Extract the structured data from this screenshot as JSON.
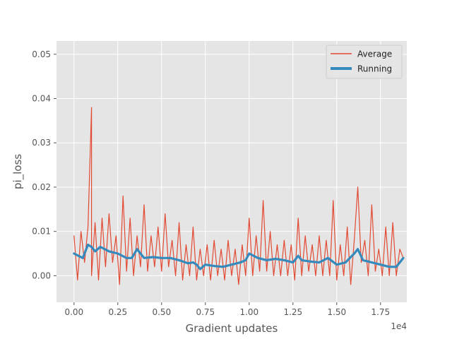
{
  "chart_data": {
    "type": "line",
    "xlabel": "Gradient updates",
    "ylabel": "pi_loss",
    "x_offset_label": "1e4",
    "xlim": [
      -0.1,
      1.9
    ],
    "ylim": [
      -0.006,
      0.053
    ],
    "x_ticks": [
      0.0,
      0.25,
      0.5,
      0.75,
      1.0,
      1.25,
      1.5,
      1.75
    ],
    "x_tick_labels": [
      "0.00",
      "0.25",
      "0.50",
      "0.75",
      "1.00",
      "1.25",
      "1.50",
      "1.75"
    ],
    "y_ticks": [
      0.0,
      0.01,
      0.02,
      0.03,
      0.04,
      0.05
    ],
    "y_tick_labels": [
      "0.00",
      "0.01",
      "0.02",
      "0.03",
      "0.04",
      "0.05"
    ],
    "grid": true,
    "legend": "top-right",
    "series": [
      {
        "name": "Average",
        "color": "#E24A33",
        "values_x": [
          0.0,
          0.02,
          0.04,
          0.06,
          0.08,
          0.1,
          0.1,
          0.12,
          0.14,
          0.16,
          0.18,
          0.2,
          0.22,
          0.24,
          0.26,
          0.28,
          0.3,
          0.32,
          0.34,
          0.36,
          0.38,
          0.4,
          0.42,
          0.44,
          0.46,
          0.48,
          0.5,
          0.52,
          0.54,
          0.56,
          0.58,
          0.6,
          0.62,
          0.64,
          0.66,
          0.68,
          0.7,
          0.72,
          0.74,
          0.76,
          0.78,
          0.8,
          0.82,
          0.84,
          0.86,
          0.88,
          0.9,
          0.92,
          0.94,
          0.96,
          0.98,
          1.0,
          1.02,
          1.04,
          1.06,
          1.08,
          1.1,
          1.12,
          1.14,
          1.16,
          1.18,
          1.2,
          1.22,
          1.24,
          1.26,
          1.28,
          1.3,
          1.32,
          1.34,
          1.36,
          1.38,
          1.4,
          1.42,
          1.44,
          1.46,
          1.48,
          1.5,
          1.52,
          1.54,
          1.56,
          1.58,
          1.6,
          1.62,
          1.64,
          1.66,
          1.68,
          1.7,
          1.72,
          1.74,
          1.76,
          1.78,
          1.8,
          1.82,
          1.84,
          1.86,
          1.88
        ],
        "values": [
          0.009,
          -0.001,
          0.01,
          0.003,
          0.011,
          0.038,
          0.0,
          0.012,
          -0.001,
          0.013,
          0.002,
          0.014,
          0.003,
          0.009,
          -0.002,
          0.018,
          0.001,
          0.013,
          0.0,
          0.009,
          0.002,
          0.016,
          0.001,
          0.009,
          0.002,
          0.011,
          0.001,
          0.014,
          0.002,
          0.008,
          0.0,
          0.012,
          -0.001,
          0.007,
          0.0,
          0.011,
          -0.001,
          0.006,
          0.0,
          0.007,
          -0.001,
          0.008,
          0.0,
          0.006,
          -0.001,
          0.008,
          0.0,
          0.006,
          -0.002,
          0.007,
          0.0,
          0.013,
          0.0,
          0.009,
          0.001,
          0.017,
          0.001,
          0.01,
          0.0,
          0.007,
          0.0,
          0.008,
          0.0,
          0.007,
          -0.001,
          0.013,
          0.0,
          0.009,
          0.001,
          0.007,
          0.0,
          0.009,
          0.0,
          0.008,
          0.0,
          0.017,
          -0.001,
          0.007,
          0.0,
          0.011,
          -0.002,
          0.008,
          0.02,
          0.003,
          0.008,
          0.0,
          0.016,
          0.001,
          0.006,
          0.0,
          0.011,
          0.0,
          0.012,
          0.0,
          0.006,
          0.004
        ]
      },
      {
        "name": "Running",
        "color": "#348ABD",
        "values_x": [
          0.0,
          0.05,
          0.08,
          0.1,
          0.12,
          0.15,
          0.2,
          0.25,
          0.3,
          0.33,
          0.36,
          0.4,
          0.45,
          0.5,
          0.55,
          0.6,
          0.65,
          0.68,
          0.7,
          0.72,
          0.75,
          0.8,
          0.85,
          0.9,
          0.95,
          0.98,
          1.0,
          1.05,
          1.1,
          1.15,
          1.2,
          1.25,
          1.28,
          1.3,
          1.35,
          1.4,
          1.45,
          1.5,
          1.55,
          1.6,
          1.62,
          1.65,
          1.7,
          1.75,
          1.8,
          1.84,
          1.86,
          1.88
        ],
        "values": [
          0.005,
          0.004,
          0.007,
          0.0065,
          0.0055,
          0.0065,
          0.0055,
          0.005,
          0.004,
          0.004,
          0.006,
          0.004,
          0.0042,
          0.004,
          0.004,
          0.0035,
          0.0028,
          0.003,
          0.0025,
          0.0015,
          0.0025,
          0.0022,
          0.002,
          0.0025,
          0.003,
          0.0035,
          0.005,
          0.004,
          0.0035,
          0.0038,
          0.0035,
          0.003,
          0.0045,
          0.0035,
          0.0032,
          0.003,
          0.004,
          0.0025,
          0.003,
          0.005,
          0.006,
          0.0035,
          0.003,
          0.0025,
          0.002,
          0.002,
          0.003,
          0.004
        ]
      }
    ]
  }
}
